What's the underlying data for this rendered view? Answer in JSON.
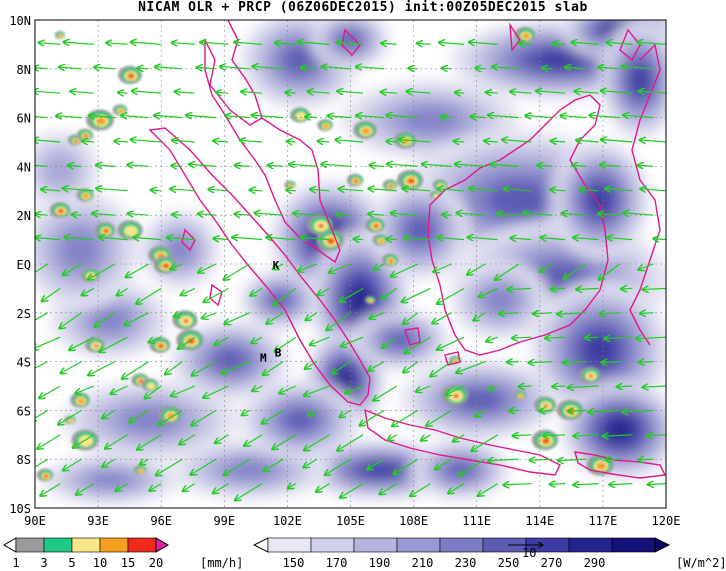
{
  "title": "NICAM OLR + PRCP (06Z06DEC2015) init:00Z05DEC2015 slab",
  "lat_labels": [
    "10N",
    "8N",
    "6N",
    "4N",
    "2N",
    "EQ",
    "2S",
    "4S",
    "6S",
    "8S",
    "10S"
  ],
  "lon_labels": [
    "90E",
    "93E",
    "96E",
    "99E",
    "102E",
    "105E",
    "108E",
    "111E",
    "114E",
    "117E",
    "120E"
  ],
  "extent": {
    "lon": [
      90,
      120
    ],
    "lat": [
      -10,
      10
    ]
  },
  "place_labels": [
    {
      "text": "K",
      "lon": 101.3,
      "lat": -0.2
    },
    {
      "text": "B",
      "lon": 101.4,
      "lat": -3.8
    },
    {
      "text": "M",
      "lon": 100.7,
      "lat": -4.0
    }
  ],
  "precip_colorbar": {
    "unit": "[mm/h]",
    "ticks": [
      "1",
      "3",
      "5",
      "10",
      "15",
      "20"
    ],
    "colors": [
      "#ffffff",
      "#9a9a9a",
      "#1fc885",
      "#f8e68a",
      "#f5a020",
      "#ef2a1a",
      "#e020a0"
    ]
  },
  "olr_colorbar": {
    "unit": "[W/m^2]",
    "ticks": [
      "150",
      "170",
      "190",
      "210",
      "230",
      "250",
      "270",
      "290"
    ],
    "colors": [
      "#ffffff",
      "#e8e8f4",
      "#d0d0ea",
      "#b4b4de",
      "#9898d2",
      "#7c7cc4",
      "#5c5cb4",
      "#3c3ca2",
      "#24248e",
      "#121278"
    ],
    "reference_vector_label": "10"
  },
  "colors": {
    "coastline": "#e0188a",
    "wind_vector": "#22cc22",
    "grid": "#888888"
  }
}
